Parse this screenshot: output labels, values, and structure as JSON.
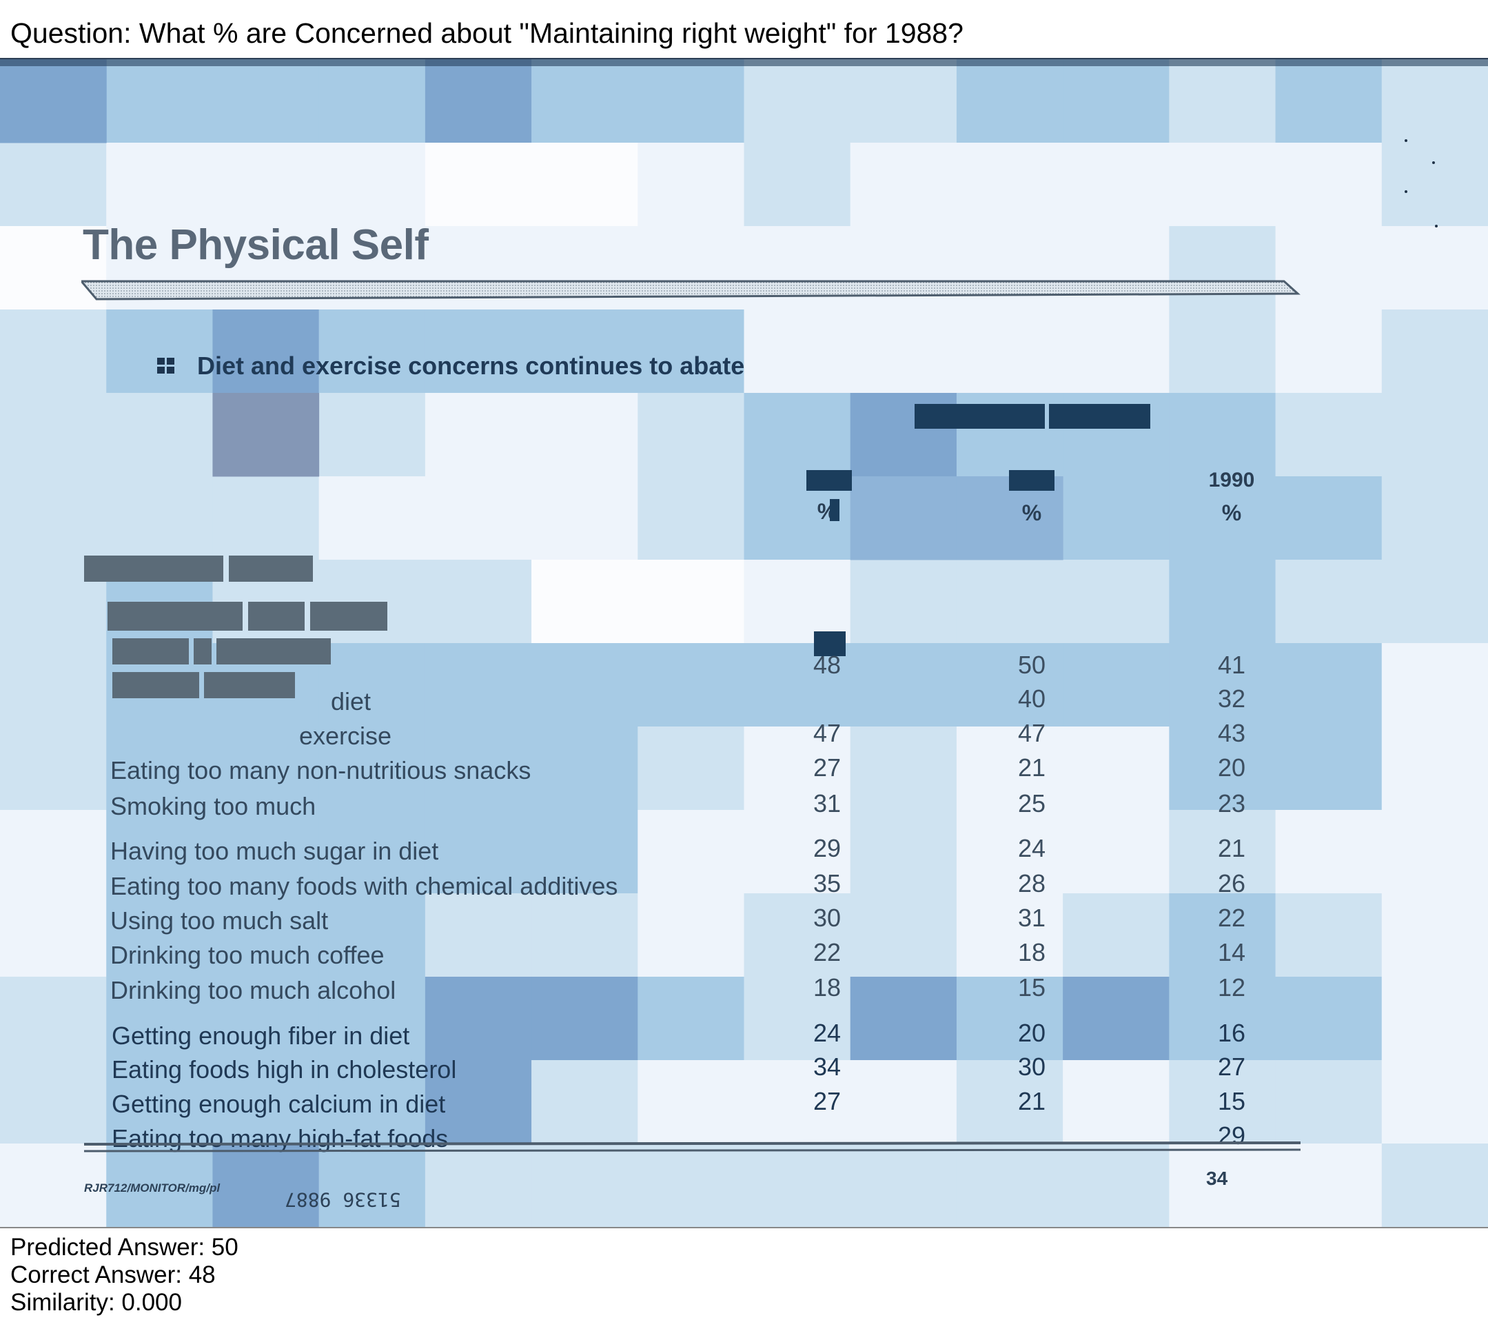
{
  "question": "Question: What % are Concerned about \"Maintaining right weight\" for 1988?",
  "document": {
    "title": "The Physical Self",
    "subtitle": "Diet and exercise concerns continues to abate",
    "columns": [
      {
        "year": "",
        "unit": "%"
      },
      {
        "year": "",
        "unit": "%"
      },
      {
        "year": "1990",
        "unit": "%"
      }
    ],
    "rows": [
      {
        "label": "",
        "values": [
          "48",
          "50",
          "41"
        ]
      },
      {
        "label": "diet",
        "values": [
          "",
          "40",
          "32"
        ]
      },
      {
        "label": "exercise",
        "values": [
          "47",
          "47",
          "43"
        ]
      },
      {
        "label": "Eating too many non-nutritious snacks",
        "values": [
          "27",
          "21",
          "20"
        ]
      },
      {
        "label": "Smoking too much",
        "values": [
          "31",
          "25",
          "23"
        ]
      },
      {
        "label": "Having too much sugar in diet",
        "values": [
          "29",
          "24",
          "21"
        ]
      },
      {
        "label": "Eating too many foods with chemical additives",
        "values": [
          "35",
          "28",
          "26"
        ]
      },
      {
        "label": "Using too much salt",
        "values": [
          "30",
          "31",
          "22"
        ]
      },
      {
        "label": "Drinking too much coffee",
        "values": [
          "22",
          "18",
          "14"
        ]
      },
      {
        "label": "Drinking too much alcohol",
        "values": [
          "18",
          "15",
          "12"
        ]
      },
      {
        "label": "Getting enough fiber in diet",
        "values": [
          "24",
          "20",
          "16"
        ]
      },
      {
        "label": "Eating foods high in cholesterol",
        "values": [
          "34",
          "30",
          "27"
        ]
      },
      {
        "label": "Getting enough calcium in diet",
        "values": [
          "27",
          "21",
          "15"
        ]
      },
      {
        "label": "Eating too many high-fat foods",
        "values": [
          "",
          "",
          "29"
        ]
      }
    ],
    "footer_left": "RJR712/MONITOR/mg/pl",
    "footer_code": "51336 9887",
    "page_number": "34"
  },
  "result": {
    "predicted": "Predicted Answer: 50",
    "correct": "Correct Answer: 48",
    "similarity": "Similarity: 0.000"
  },
  "heatmap_colors": {
    "darkest": "#1b3d5c",
    "dark": "#7fa6cf",
    "mid": "#a7cbe5",
    "light": "#cfe3f1",
    "lightest": "#eef4fb",
    "white": "#fbfcfe"
  }
}
